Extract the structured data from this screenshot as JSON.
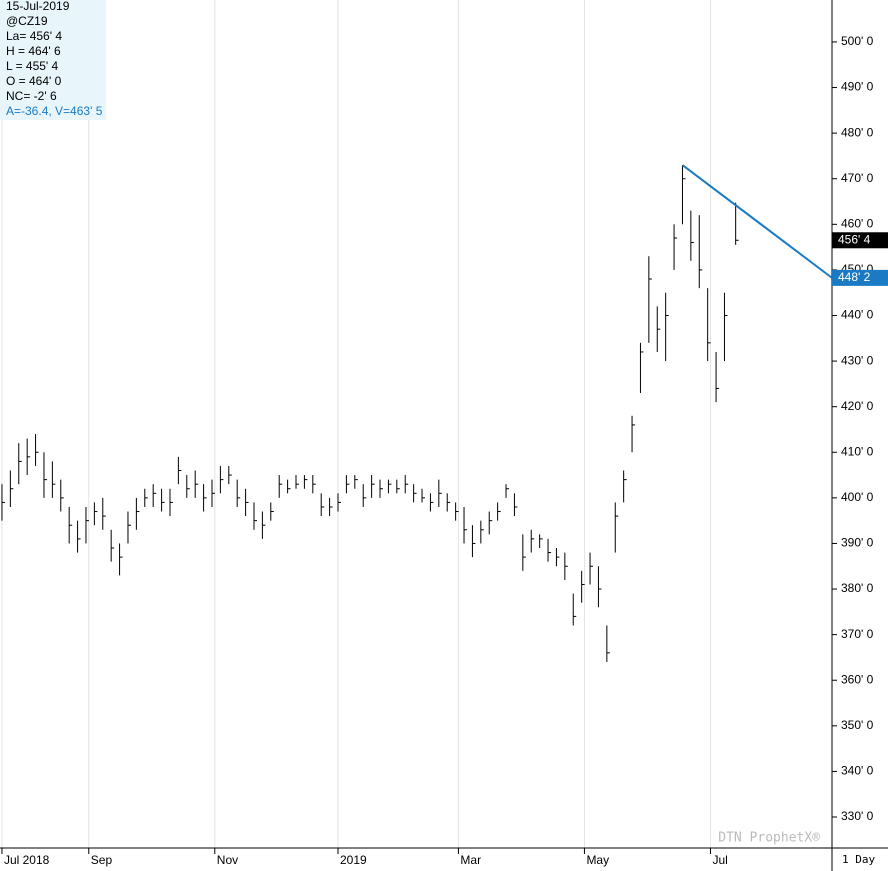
{
  "chart_data": {
    "type": "ohlc",
    "info": {
      "date": "15-Jul-2019",
      "symbol": "@CZ19",
      "last": "La= 456' 4",
      "high": "H = 464' 6",
      "low": "L = 455' 4",
      "open": "O = 464' 0",
      "net_change": "NC= -2' 6",
      "trend_info": "A=-36.4, V=463' 5"
    },
    "watermark": "DTN ProphetX®",
    "interval": "1 Day",
    "x": [
      0,
      3,
      6,
      9,
      12,
      15,
      18,
      21,
      24,
      27,
      30,
      33,
      36,
      39,
      42,
      45,
      48,
      51,
      54,
      57,
      60,
      63,
      66,
      69,
      72,
      75,
      78,
      81,
      84,
      87,
      90,
      93,
      96,
      99,
      102,
      105,
      108,
      111,
      114,
      117,
      120,
      123,
      126,
      129,
      132,
      135,
      138,
      141,
      144,
      147,
      150,
      153,
      156,
      159,
      162,
      165,
      168,
      171,
      174,
      177,
      180,
      183,
      186,
      189,
      192,
      195,
      198,
      201,
      204,
      207,
      210,
      213,
      216,
      219,
      222,
      225,
      228,
      231,
      234,
      237,
      240,
      243,
      246,
      249,
      252,
      255,
      258,
      262
    ],
    "high": [
      403,
      406,
      412,
      413,
      414,
      410,
      408,
      404,
      398,
      395,
      398,
      399,
      400,
      393,
      390,
      397,
      400,
      402,
      403,
      402,
      402,
      409,
      405,
      406,
      403,
      404,
      407,
      407,
      404,
      402,
      399,
      397,
      399,
      405,
      404,
      405,
      405,
      405,
      401,
      400,
      401,
      405,
      405,
      403,
      405,
      404,
      404,
      404,
      405,
      403,
      402,
      401,
      404,
      401,
      399,
      398,
      394,
      395,
      397,
      399,
      403,
      401,
      392,
      393,
      392,
      391,
      389,
      388,
      379,
      384,
      388,
      385,
      372,
      399,
      406,
      418,
      434,
      453,
      442,
      445,
      460,
      473,
      463,
      462,
      446,
      432,
      445,
      464.75
    ],
    "low": [
      395,
      398,
      403,
      405,
      407,
      400,
      400,
      397,
      390,
      388,
      390,
      394,
      393,
      386,
      383,
      390,
      393,
      398,
      398,
      397,
      396,
      403,
      400,
      400,
      397,
      398,
      401,
      403,
      398,
      396,
      393,
      391,
      395,
      400,
      401,
      402,
      402,
      401,
      396,
      396,
      397,
      401,
      402,
      398,
      400,
      400,
      401,
      401,
      401,
      399,
      399,
      397,
      398,
      397,
      395,
      390,
      387,
      390,
      392,
      395,
      400,
      396,
      384,
      388,
      389,
      386,
      385,
      382,
      372,
      377,
      381,
      376,
      364,
      388,
      399,
      410,
      423,
      434,
      432,
      430,
      450,
      460,
      452,
      446,
      430,
      421,
      430,
      455.5
    ],
    "close": [
      399,
      402,
      408,
      409,
      410,
      404,
      403,
      400,
      394,
      391,
      395,
      397,
      396,
      389,
      387,
      394,
      397,
      400,
      401,
      399,
      399,
      406,
      402,
      403,
      400,
      401,
      404,
      405,
      400,
      399,
      395,
      394,
      397,
      403,
      402,
      403,
      404,
      403,
      398,
      398,
      399,
      403,
      404,
      400,
      403,
      402,
      403,
      402,
      403,
      401,
      400,
      399,
      401,
      399,
      397,
      393,
      390,
      393,
      395,
      397,
      402,
      398,
      387,
      391,
      391,
      388,
      387,
      385,
      374,
      381,
      385,
      380,
      366,
      396,
      404,
      416,
      432,
      448,
      437,
      440,
      457,
      470,
      456,
      450,
      434,
      424,
      440,
      456.5
    ],
    "color": "#000000",
    "xlim": [
      -0.7,
      296.4
    ],
    "xticks": [
      {
        "value": 0,
        "label": "Jul 2018"
      },
      {
        "value": 31,
        "label": "Sep"
      },
      {
        "value": 76,
        "label": "Nov"
      },
      {
        "value": 120,
        "label": "2019"
      },
      {
        "value": 163,
        "label": "Mar"
      },
      {
        "value": 208,
        "label": "May"
      },
      {
        "value": 253,
        "label": "Jul"
      }
    ],
    "ylim": [
      323.2,
      509.2
    ],
    "yticks": [
      {
        "value": 330,
        "label": "330' 0"
      },
      {
        "value": 340,
        "label": "340' 0"
      },
      {
        "value": 350,
        "label": "350' 0"
      },
      {
        "value": 360,
        "label": "360' 0"
      },
      {
        "value": 370,
        "label": "370' 0"
      },
      {
        "value": 380,
        "label": "380' 0"
      },
      {
        "value": 390,
        "label": "390' 0"
      },
      {
        "value": 400,
        "label": "400' 0"
      },
      {
        "value": 410,
        "label": "410' 0"
      },
      {
        "value": 420,
        "label": "420' 0"
      },
      {
        "value": 430,
        "label": "430' 0"
      },
      {
        "value": 440,
        "label": "440' 0"
      },
      {
        "value": 450,
        "label": "450' 0"
      },
      {
        "value": 460,
        "label": "460' 0"
      },
      {
        "value": 470,
        "label": "470' 0"
      },
      {
        "value": 480,
        "label": "480' 0"
      },
      {
        "value": 490,
        "label": "490' 0"
      },
      {
        "value": 500,
        "label": "500' 0"
      }
    ],
    "grid": true,
    "trendline": {
      "x": [
        243,
        296.4
      ],
      "y": [
        473,
        448.25
      ],
      "color": "#1a7bc4"
    },
    "last_label": {
      "value": 456.5,
      "label": "456' 4",
      "color": "#000000"
    },
    "trend_label": {
      "value": 448.25,
      "label": "448' 2",
      "color": "#1a7bc4"
    }
  }
}
